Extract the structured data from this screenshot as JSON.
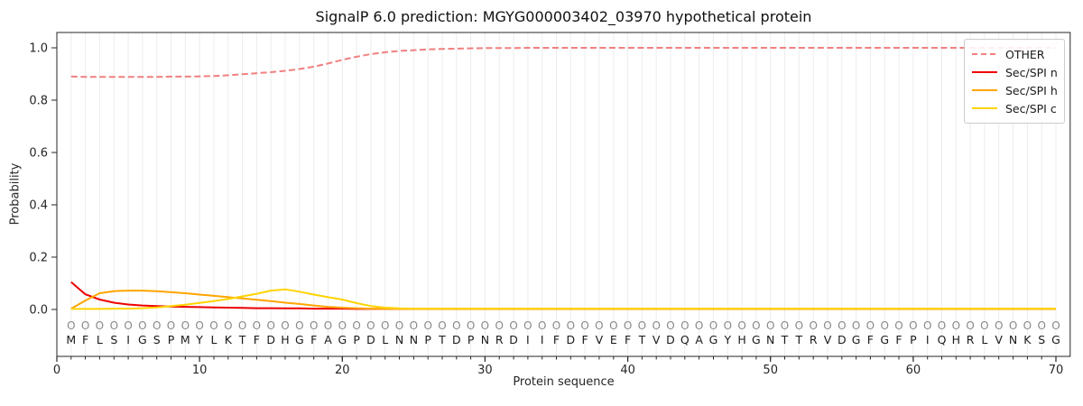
{
  "chart_data": {
    "type": "line",
    "title": "SignalP 6.0 prediction: MGYG000003402_03970 hypothetical protein",
    "xlabel": "Protein sequence",
    "ylabel": "Probability",
    "xlim": [
      0,
      71
    ],
    "ylim": [
      -0.18,
      1.06
    ],
    "x_ticks": [
      0,
      10,
      20,
      30,
      40,
      50,
      60,
      70
    ],
    "y_ticks": [
      "0.0",
      "0.2",
      "0.4",
      "0.6",
      "0.8",
      "1.0"
    ],
    "grid": "vertical line per residue, light gray",
    "legend_position": "upper right",
    "sequence": "MFLSIGSPMYLKTFDHGFAGPDLNNPTDPNRDIIFDFVEFTVDQAGYHGNTTRVDGFGFPIQHRLVNKSG",
    "per_position_class_row": "OOOOOOOOOOOOOOOOOOOOOOOOOOOOOOOOOOOOOOOOOOOOOOOOOOOOOOOOOOOOOOOOOOOOOO",
    "x": [
      1,
      2,
      3,
      4,
      5,
      6,
      7,
      8,
      9,
      10,
      11,
      12,
      13,
      14,
      15,
      16,
      17,
      18,
      19,
      20,
      21,
      22,
      23,
      24,
      25,
      26,
      27,
      28,
      29,
      30,
      31,
      32,
      33,
      34,
      35,
      36,
      37,
      38,
      39,
      40,
      41,
      42,
      43,
      44,
      45,
      46,
      47,
      48,
      49,
      50,
      51,
      52,
      53,
      54,
      55,
      56,
      57,
      58,
      59,
      60,
      61,
      62,
      63,
      64,
      65,
      66,
      67,
      68,
      69,
      70
    ],
    "series": [
      {
        "name": "OTHER",
        "color": "#f08080",
        "dash": true,
        "values": [
          0.89,
          0.889,
          0.889,
          0.889,
          0.889,
          0.889,
          0.889,
          0.89,
          0.89,
          0.891,
          0.892,
          0.895,
          0.899,
          0.903,
          0.907,
          0.912,
          0.919,
          0.928,
          0.94,
          0.954,
          0.966,
          0.976,
          0.983,
          0.988,
          0.991,
          0.994,
          0.996,
          0.997,
          0.998,
          0.999,
          0.999,
          0.999,
          1.0,
          1.0,
          1.0,
          1.0,
          1.0,
          1.0,
          1.0,
          1.0,
          1.0,
          1.0,
          1.0,
          1.0,
          1.0,
          1.0,
          1.0,
          1.0,
          1.0,
          1.0,
          1.0,
          1.0,
          1.0,
          1.0,
          1.0,
          1.0,
          1.0,
          1.0,
          1.0,
          1.0,
          1.0,
          1.0,
          1.0,
          1.0,
          1.0,
          1.0,
          1.0,
          1.0,
          1.0,
          1.0
        ]
      },
      {
        "name": "Sec/SPI n",
        "color": "#ee0000",
        "dash": false,
        "values": [
          0.105,
          0.058,
          0.038,
          0.026,
          0.019,
          0.015,
          0.013,
          0.011,
          0.01,
          0.009,
          0.008,
          0.007,
          0.006,
          0.005,
          0.005,
          0.004,
          0.004,
          0.003,
          0.003,
          0.003,
          0.002,
          0.002,
          0.002,
          0.002,
          0.002,
          0.002,
          0.002,
          0.002,
          0.002,
          0.002,
          0.002,
          0.002,
          0.002,
          0.002,
          0.002,
          0.002,
          0.002,
          0.002,
          0.002,
          0.002,
          0.002,
          0.002,
          0.002,
          0.002,
          0.002,
          0.002,
          0.002,
          0.002,
          0.002,
          0.002,
          0.002,
          0.002,
          0.002,
          0.002,
          0.002,
          0.002,
          0.002,
          0.002,
          0.002,
          0.002,
          0.002,
          0.002,
          0.002,
          0.002,
          0.002,
          0.002,
          0.002,
          0.002,
          0.002,
          0.002
        ]
      },
      {
        "name": "Sec/SPI h",
        "color": "#ffa500",
        "dash": false,
        "values": [
          0.003,
          0.034,
          0.062,
          0.07,
          0.072,
          0.072,
          0.07,
          0.066,
          0.062,
          0.057,
          0.052,
          0.047,
          0.042,
          0.037,
          0.032,
          0.026,
          0.021,
          0.015,
          0.01,
          0.007,
          0.005,
          0.003,
          0.002,
          0.002,
          0.002,
          0.002,
          0.002,
          0.002,
          0.002,
          0.002,
          0.002,
          0.002,
          0.002,
          0.002,
          0.002,
          0.002,
          0.002,
          0.002,
          0.002,
          0.002,
          0.002,
          0.002,
          0.002,
          0.002,
          0.002,
          0.002,
          0.002,
          0.002,
          0.002,
          0.002,
          0.002,
          0.002,
          0.002,
          0.002,
          0.002,
          0.002,
          0.002,
          0.002,
          0.002,
          0.002,
          0.002,
          0.002,
          0.002,
          0.002,
          0.002,
          0.002,
          0.002,
          0.002,
          0.002,
          0.002
        ]
      },
      {
        "name": "Sec/SPI c",
        "color": "#ffd400",
        "dash": false,
        "values": [
          0.002,
          0.002,
          0.002,
          0.003,
          0.003,
          0.005,
          0.008,
          0.013,
          0.018,
          0.025,
          0.032,
          0.04,
          0.05,
          0.06,
          0.072,
          0.077,
          0.068,
          0.057,
          0.047,
          0.038,
          0.024,
          0.013,
          0.007,
          0.004,
          0.003,
          0.003,
          0.003,
          0.003,
          0.003,
          0.003,
          0.003,
          0.003,
          0.003,
          0.003,
          0.003,
          0.003,
          0.003,
          0.003,
          0.003,
          0.003,
          0.003,
          0.003,
          0.003,
          0.003,
          0.003,
          0.003,
          0.003,
          0.003,
          0.003,
          0.003,
          0.003,
          0.003,
          0.003,
          0.003,
          0.003,
          0.003,
          0.003,
          0.003,
          0.003,
          0.003,
          0.003,
          0.003,
          0.003,
          0.003,
          0.003,
          0.003,
          0.003,
          0.003,
          0.003,
          0.003
        ]
      }
    ],
    "style": {
      "grid_color": "#ececec",
      "spine_color": "#262626",
      "tick_label_color": "#262626",
      "marker_row_color": "#888888",
      "sequence_letter_color": "#1a1a1a",
      "background": "#ffffff"
    }
  }
}
